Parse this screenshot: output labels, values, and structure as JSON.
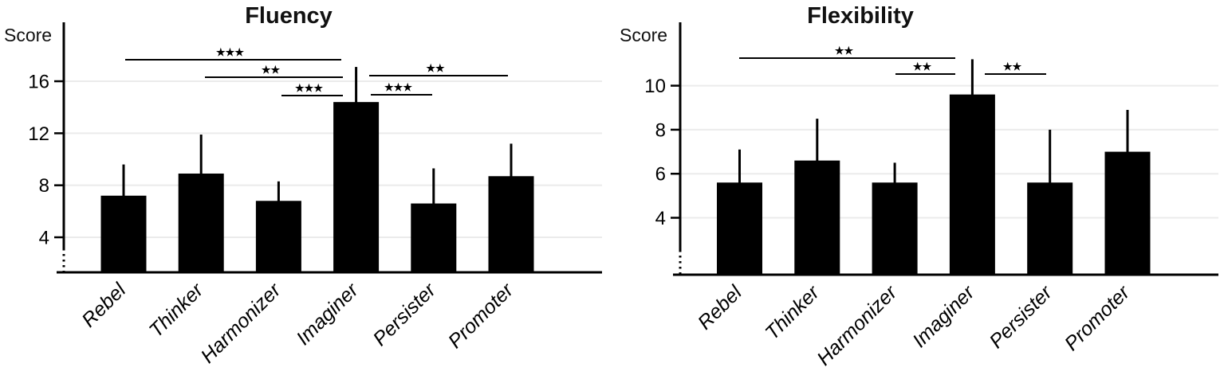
{
  "figure": {
    "background_color": "#ffffff",
    "text_color": "#000000"
  },
  "chart_data": [
    {
      "type": "bar",
      "title": "Fluency",
      "ylabel": "Score",
      "categories": [
        "Rebel",
        "Thinker",
        "Harmonizer",
        "Imaginer",
        "Persister",
        "Promoter"
      ],
      "values": [
        7.2,
        8.9,
        6.8,
        14.4,
        6.6,
        8.7
      ],
      "error_bars_upper": [
        9.6,
        11.9,
        8.3,
        17.1,
        9.3,
        11.2
      ],
      "y_ticks": [
        4,
        8,
        12,
        16
      ],
      "ylim": [
        4,
        18.5
      ],
      "y_axis_break": true,
      "grid": "horizontal",
      "legend": "none",
      "bar_color": "#000000",
      "gridline_color": "#ebebeb",
      "significance_brackets": [
        {
          "between": [
            "Rebel",
            "Imaginer"
          ],
          "stars": "★★★"
        },
        {
          "between": [
            "Thinker",
            "Imaginer"
          ],
          "stars": "★★"
        },
        {
          "between": [
            "Harmonizer",
            "Imaginer"
          ],
          "stars": "★★★"
        },
        {
          "between": [
            "Imaginer",
            "Persister"
          ],
          "stars": "★★★"
        },
        {
          "between": [
            "Imaginer",
            "Promoter"
          ],
          "stars": "★★"
        }
      ]
    },
    {
      "type": "bar",
      "title": "Flexibility",
      "ylabel": "Score",
      "categories": [
        "Rebel",
        "Thinker",
        "Harmonizer",
        "Imaginer",
        "Persister",
        "Promoter"
      ],
      "values": [
        5.6,
        6.6,
        5.6,
        9.6,
        5.6,
        7.0
      ],
      "error_bars_upper": [
        7.1,
        8.5,
        6.5,
        11.2,
        8.0,
        8.9
      ],
      "y_ticks": [
        4,
        6,
        8,
        10
      ],
      "ylim": [
        4,
        11.6
      ],
      "y_axis_break": true,
      "grid": "horizontal",
      "legend": "none",
      "bar_color": "#000000",
      "gridline_color": "#ebebeb",
      "significance_brackets": [
        {
          "between": [
            "Rebel",
            "Imaginer"
          ],
          "stars": "★★"
        },
        {
          "between": [
            "Harmonizer",
            "Imaginer"
          ],
          "stars": "★★"
        },
        {
          "between": [
            "Imaginer",
            "Persister"
          ],
          "stars": "★★"
        }
      ]
    }
  ]
}
